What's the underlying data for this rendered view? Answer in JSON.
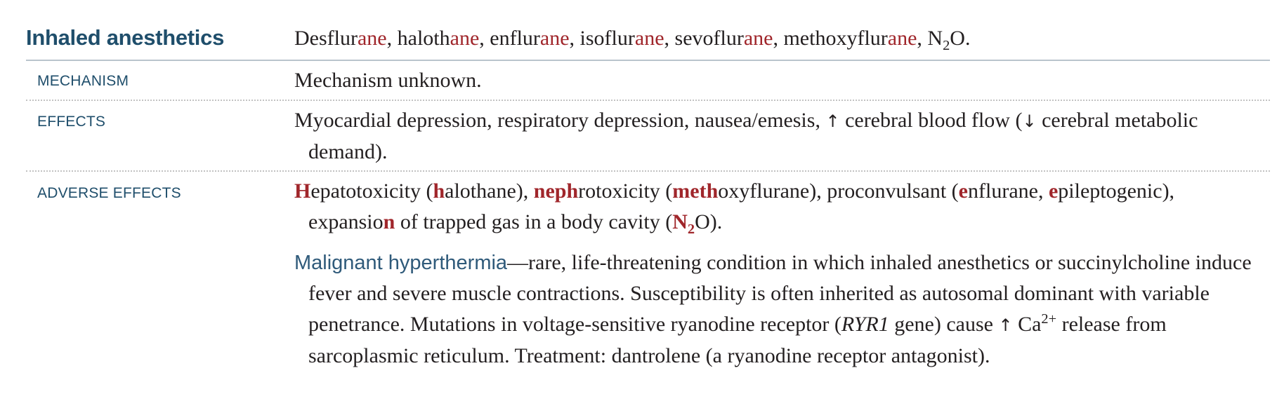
{
  "section": {
    "title": "Inhaled anesthetics",
    "drugs": {
      "desflurane_stem": "Desflur",
      "desflurane_suffix": "ane",
      "sep1": ", ",
      "halothane_stem": "haloth",
      "halothane_suffix": "ane",
      "sep2": ", ",
      "enflurane_stem": "enflur",
      "enflurane_suffix": "ane",
      "sep3": ", ",
      "isoflurane_stem": "isoflur",
      "isoflurane_suffix": "ane",
      "sep4": ", ",
      "sevoflurane_stem": "sevoflur",
      "sevoflurane_suffix": "ane",
      "sep5": ", ",
      "methoxyflurane_stem": "methoxyflur",
      "methoxyflurane_suffix": "ane",
      "sep6": ", ",
      "n2o_n": "N",
      "n2o_sub": "2",
      "n2o_o": "O."
    }
  },
  "mechanism": {
    "label": "MECHANISM",
    "text": "Mechanism unknown."
  },
  "effects": {
    "label": "EFFECTS",
    "part1": "Myocardial depression, respiratory depression, nausea/emesis, ",
    "arrow_up": "↑",
    "part2": " cerebral blood flow (",
    "arrow_down": "↓",
    "part3": " cerebral metabolic demand)."
  },
  "adverse_effects": {
    "label": "ADVERSE EFFECTS",
    "p1": {
      "h1": "H",
      "t1": "epatotoxicity (",
      "h2": "h",
      "t2": "alothane), ",
      "h3": "neph",
      "t3": "rotoxicity (",
      "h4": "meth",
      "t4": "oxyflurane), proconvulsant (",
      "h5": "e",
      "t5": "nflurane, ",
      "h6": "e",
      "t6": "pileptogenic), expansio",
      "h7": "n",
      "t7": " of trapped gas in a body cavity (",
      "h8": "N",
      "h8_sub": "2",
      "t8": "O)."
    },
    "p2": {
      "term": "Malignant hyperthermia",
      "t1": "—rare, life-threatening condition in which inhaled anesthetics or succinylcholine induce fever and severe muscle contractions. Susceptibility is often inherited as autosomal dominant with variable penetrance. Mutations in voltage-sensitive ryanodine receptor (",
      "gene": "RYR1",
      "t2": " gene) cause ",
      "arrow_up": "↑",
      "t3": " Ca",
      "charge": "2+",
      "t4": " release from sarcoplasmic reticulum. Treatment: dantrolene (a ryanodine receptor antagonist)."
    }
  },
  "colors": {
    "heading_blue": "#1f4e6b",
    "mnemonic_red": "#a0262b",
    "term_blue": "#2f5a7a",
    "rule_gray": "#b9c4cc"
  }
}
